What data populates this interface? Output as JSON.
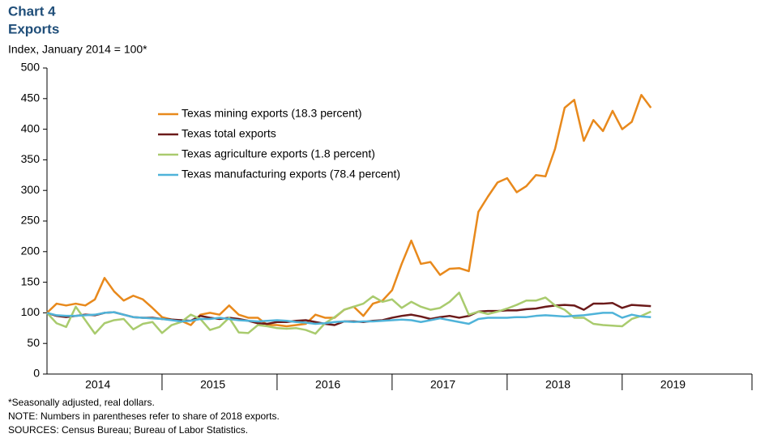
{
  "chart_data": {
    "type": "line",
    "title": "Chart 4",
    "subtitle": "Exports",
    "y_label": "Index, January 2014 = 100*",
    "notes": [
      "*Seasonally adjusted, real dollars.",
      "NOTE: Numbers in parentheses refer to share of 2018 exports.",
      "SOURCES: Census Bureau; Bureau of Labor Statistics."
    ],
    "categories": [
      "2014",
      null,
      null,
      null,
      null,
      null,
      null,
      null,
      null,
      null,
      null,
      null,
      "2015",
      null,
      null,
      null,
      null,
      null,
      null,
      null,
      null,
      null,
      null,
      null,
      "2016",
      null,
      null,
      null,
      null,
      null,
      null,
      null,
      null,
      null,
      null,
      null,
      "2017",
      null,
      null,
      null,
      null,
      null,
      null,
      null,
      null,
      null,
      null,
      null,
      "2018",
      null,
      null,
      null,
      null,
      null,
      null,
      null,
      null,
      null,
      null,
      null,
      "2019",
      null,
      null,
      null
    ],
    "ylim": [
      0,
      500
    ],
    "yticks": [
      0,
      50,
      100,
      150,
      200,
      250,
      300,
      350,
      400,
      450,
      500
    ],
    "series": [
      {
        "name": "Texas mining exports (18.3 percent)",
        "color": "#e8891c",
        "values": [
          100,
          115,
          112,
          115,
          112,
          122,
          157,
          135,
          120,
          128,
          122,
          108,
          93,
          89,
          87,
          80,
          97,
          100,
          97,
          112,
          97,
          92,
          92,
          80,
          80,
          78,
          80,
          82,
          97,
          92,
          92,
          105,
          110,
          95,
          115,
          120,
          137,
          180,
          218,
          180,
          183,
          162,
          172,
          173,
          168,
          265,
          290,
          313,
          320,
          297,
          307,
          325,
          323,
          368,
          435,
          448,
          381,
          415,
          397,
          430,
          400,
          412,
          456,
          435
        ]
      },
      {
        "name": "Texas total exports",
        "color": "#6b1a1a",
        "values": [
          100,
          95,
          93,
          95,
          97,
          96,
          100,
          101,
          97,
          93,
          92,
          92,
          90,
          89,
          88,
          87,
          95,
          92,
          90,
          92,
          90,
          87,
          83,
          82,
          85,
          85,
          87,
          88,
          85,
          82,
          80,
          86,
          86,
          85,
          87,
          88,
          92,
          95,
          97,
          94,
          90,
          93,
          95,
          92,
          95,
          102,
          103,
          103,
          104,
          104,
          106,
          107,
          110,
          112,
          113,
          112,
          105,
          115,
          115,
          116,
          108,
          113,
          112,
          111
        ]
      },
      {
        "name": "Texas agriculture exports (1.8 percent)",
        "color": "#a9cb6e",
        "values": [
          100,
          83,
          77,
          110,
          88,
          66,
          83,
          88,
          90,
          73,
          82,
          85,
          67,
          80,
          85,
          97,
          90,
          72,
          77,
          92,
          68,
          67,
          80,
          78,
          75,
          74,
          75,
          72,
          66,
          83,
          93,
          105,
          110,
          115,
          127,
          118,
          122,
          108,
          118,
          110,
          105,
          108,
          118,
          133,
          97,
          102,
          98,
          102,
          107,
          113,
          120,
          120,
          125,
          112,
          105,
          92,
          92,
          82,
          80,
          79,
          78,
          90,
          95,
          102
        ]
      },
      {
        "name": "Texas manufacturing exports (78.4 percent)",
        "color": "#4fb3d9",
        "values": [
          100,
          96,
          95,
          95,
          96,
          97,
          100,
          101,
          97,
          93,
          92,
          91,
          90,
          88,
          86,
          87,
          90,
          90,
          92,
          90,
          88,
          87,
          86,
          87,
          88,
          87,
          85,
          84,
          82,
          83,
          85,
          86,
          85,
          86,
          86,
          87,
          88,
          89,
          88,
          85,
          88,
          91,
          88,
          85,
          82,
          90,
          92,
          92,
          92,
          93,
          93,
          95,
          96,
          95,
          94,
          95,
          96,
          98,
          100,
          100,
          92,
          97,
          94,
          93
        ]
      }
    ]
  }
}
